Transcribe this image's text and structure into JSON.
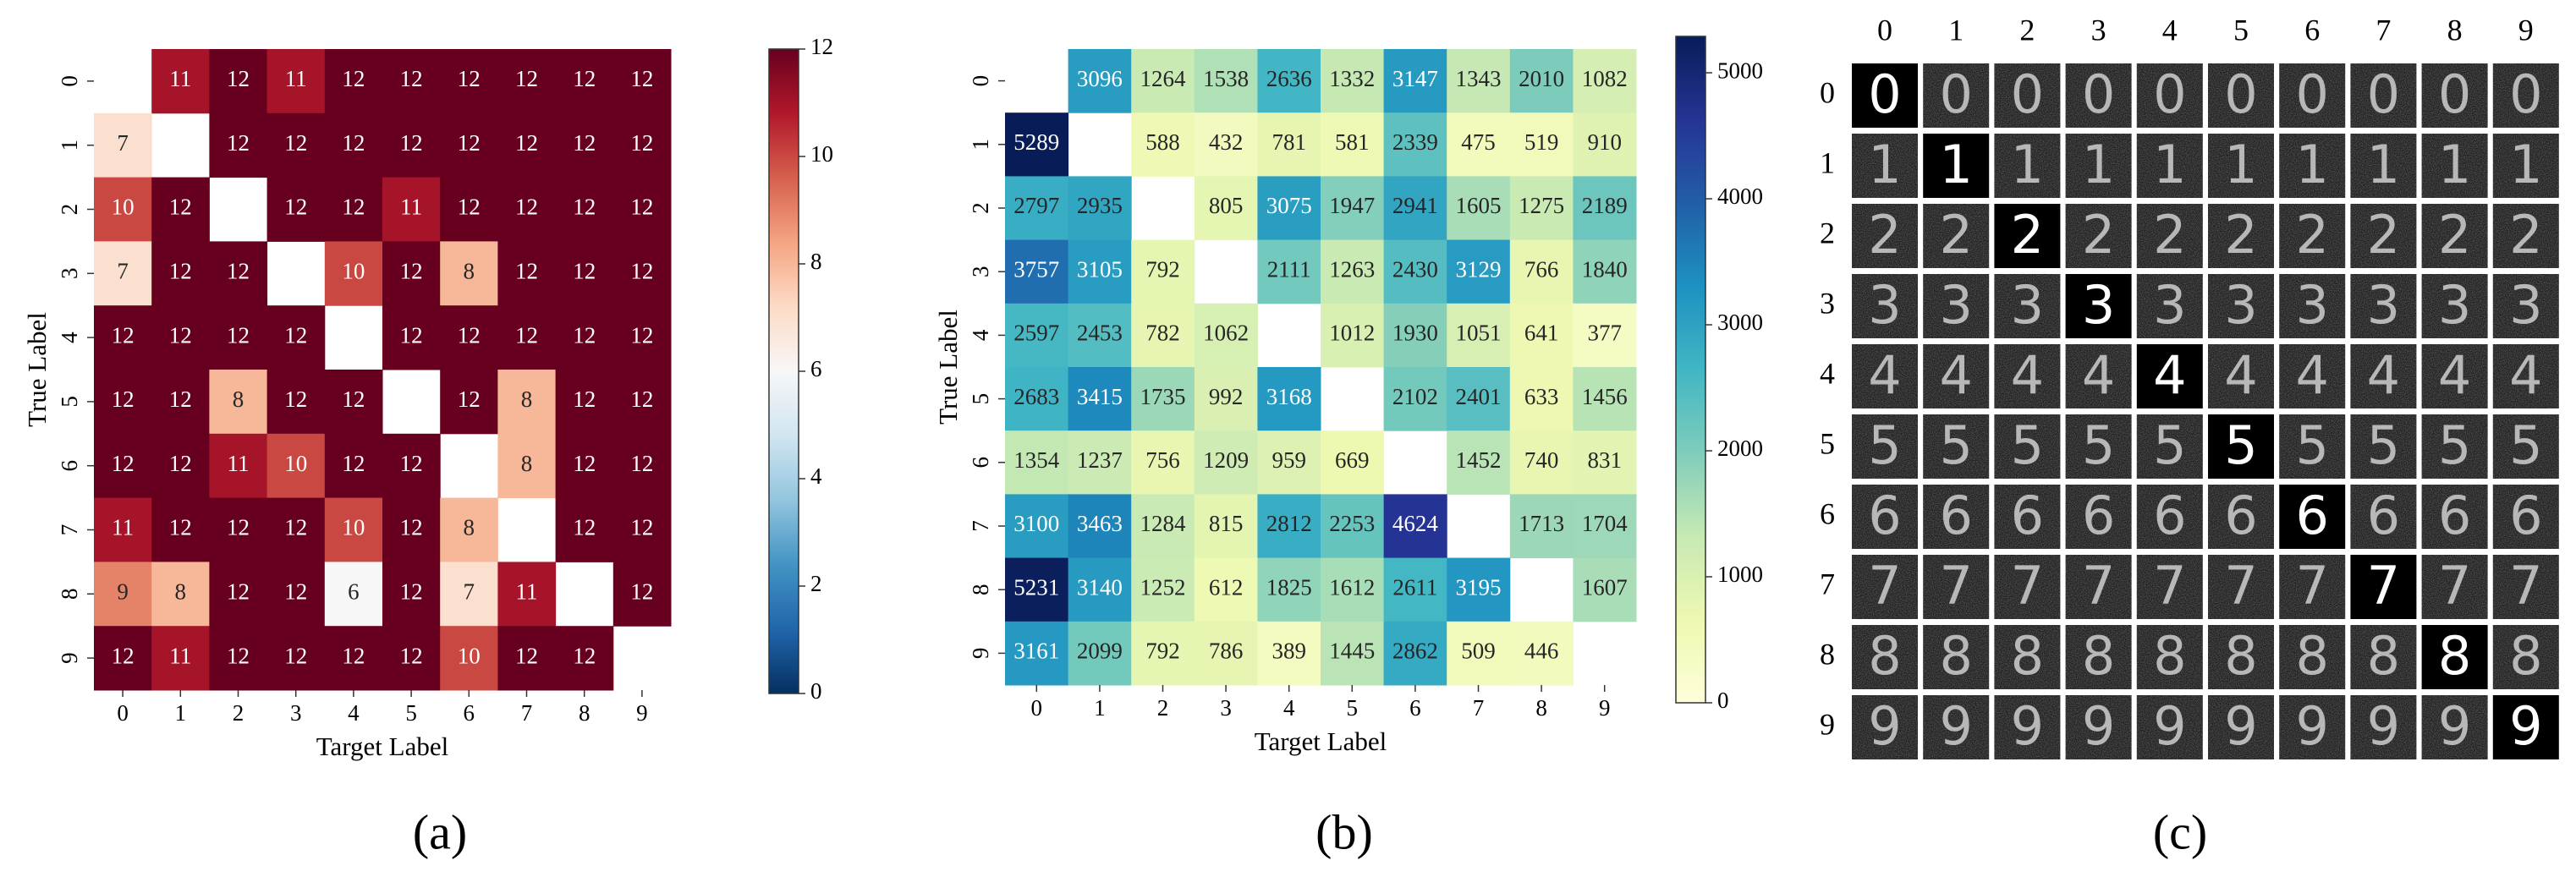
{
  "chart_data": [
    {
      "type": "heatmap",
      "panel_label": "(a)",
      "x_label": "Target Label",
      "y_label": "True Label",
      "x_categories": [
        "0",
        "1",
        "2",
        "3",
        "4",
        "5",
        "6",
        "7",
        "8",
        "9"
      ],
      "y_categories": [
        "0",
        "1",
        "2",
        "3",
        "4",
        "5",
        "6",
        "7",
        "8",
        "9"
      ],
      "values": [
        [
          null,
          11,
          12,
          11,
          12,
          12,
          12,
          12,
          12,
          12
        ],
        [
          7,
          null,
          12,
          12,
          12,
          12,
          12,
          12,
          12,
          12
        ],
        [
          10,
          12,
          null,
          12,
          12,
          11,
          12,
          12,
          12,
          12
        ],
        [
          7,
          12,
          12,
          null,
          10,
          12,
          8,
          12,
          12,
          12
        ],
        [
          12,
          12,
          12,
          12,
          null,
          12,
          12,
          12,
          12,
          12
        ],
        [
          12,
          12,
          8,
          12,
          12,
          null,
          12,
          8,
          12,
          12
        ],
        [
          12,
          12,
          11,
          10,
          12,
          12,
          null,
          8,
          12,
          12
        ],
        [
          11,
          12,
          12,
          12,
          10,
          12,
          8,
          null,
          12,
          12
        ],
        [
          9,
          8,
          12,
          12,
          6,
          12,
          7,
          11,
          null,
          12
        ],
        [
          12,
          11,
          12,
          12,
          12,
          12,
          10,
          12,
          12,
          null
        ]
      ],
      "colorscale": [
        "#053061",
        "#2166ac",
        "#4393c3",
        "#92c5de",
        "#d1e5f0",
        "#f7f7f7",
        "#fddbc7",
        "#f4a582",
        "#d6604d",
        "#b2182b",
        "#67001f"
      ],
      "zlim": [
        0,
        12
      ],
      "zticks": [
        0,
        2,
        4,
        6,
        8,
        10,
        12
      ]
    },
    {
      "type": "heatmap",
      "panel_label": "(b)",
      "x_label": "Target Label",
      "y_label": "True Label",
      "x_categories": [
        "0",
        "1",
        "2",
        "3",
        "4",
        "5",
        "6",
        "7",
        "8",
        "9"
      ],
      "y_categories": [
        "0",
        "1",
        "2",
        "3",
        "4",
        "5",
        "6",
        "7",
        "8",
        "9"
      ],
      "values": [
        [
          null,
          3096,
          1264,
          1538,
          2636,
          1332,
          3147,
          1343,
          2010,
          1082
        ],
        [
          5289,
          null,
          588,
          432,
          781,
          581,
          2339,
          475,
          519,
          910
        ],
        [
          2797,
          2935,
          null,
          805,
          3075,
          1947,
          2941,
          1605,
          1275,
          2189
        ],
        [
          3757,
          3105,
          792,
          null,
          2111,
          1263,
          2430,
          3129,
          766,
          1840
        ],
        [
          2597,
          2453,
          782,
          1062,
          null,
          1012,
          1930,
          1051,
          641,
          377
        ],
        [
          2683,
          3415,
          1735,
          992,
          3168,
          null,
          2102,
          2401,
          633,
          1456
        ],
        [
          1354,
          1237,
          756,
          1209,
          959,
          669,
          null,
          1452,
          740,
          831
        ],
        [
          3100,
          3463,
          1284,
          815,
          2812,
          2253,
          4624,
          null,
          1713,
          1704
        ],
        [
          5231,
          3140,
          1252,
          612,
          1825,
          1612,
          2611,
          3195,
          null,
          1607
        ],
        [
          3161,
          2099,
          792,
          786,
          389,
          1445,
          2862,
          509,
          446,
          null
        ]
      ],
      "colorscale": [
        "#ffffd9",
        "#edf8b1",
        "#c7e9b4",
        "#7fcdbb",
        "#41b6c4",
        "#1d91c0",
        "#225ea8",
        "#253494",
        "#081d58"
      ],
      "zlim": [
        0,
        5289
      ],
      "zticks": [
        0,
        1000,
        2000,
        3000,
        4000,
        5000
      ]
    }
  ],
  "image_grid": {
    "panel_label": "(c)",
    "column_labels": [
      "0",
      "1",
      "2",
      "3",
      "4",
      "5",
      "6",
      "7",
      "8",
      "9"
    ],
    "row_labels": [
      "0",
      "1",
      "2",
      "3",
      "4",
      "5",
      "6",
      "7",
      "8",
      "9"
    ]
  }
}
